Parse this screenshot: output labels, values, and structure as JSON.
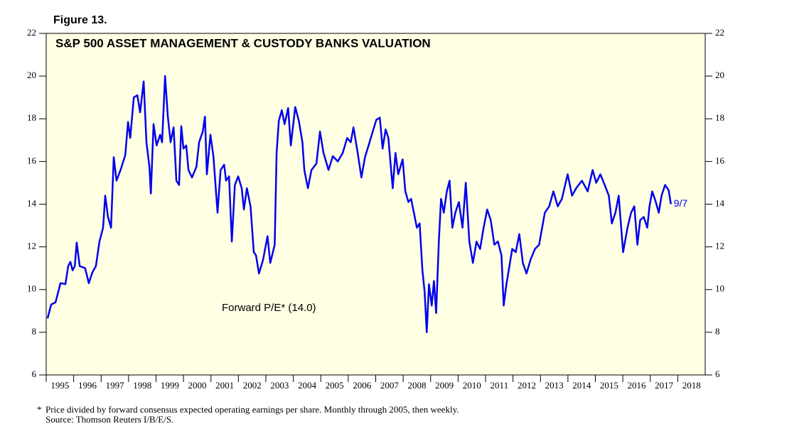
{
  "chart_data": {
    "type": "line",
    "figure_label": "Figure 13.",
    "title": "S&P 500 ASSET MANAGEMENT & CUSTODY BANKS VALUATION",
    "annotation": "Forward P/E* (14.0)",
    "end_label": "9/7",
    "footnote_marker": "*",
    "footnote": "Price divided by forward consensus expected operating earnings per share. Monthly through 2005, then weekly.",
    "source": "Source: Thomson Reuters I/B/E/S.",
    "xlim": [
      1995,
      2019
    ],
    "xticks": [
      1995,
      1996,
      1997,
      1998,
      1999,
      2000,
      2001,
      2002,
      2003,
      2004,
      2005,
      2006,
      2007,
      2008,
      2009,
      2010,
      2011,
      2012,
      2013,
      2014,
      2015,
      2016,
      2017,
      2018
    ],
    "ylim": [
      6,
      22
    ],
    "yticks": [
      6,
      8,
      10,
      12,
      14,
      16,
      18,
      20,
      22
    ],
    "x": [
      1995.05,
      1995.18,
      1995.34,
      1995.52,
      1995.7,
      1995.8,
      1995.88,
      1995.96,
      1996.04,
      1996.11,
      1996.22,
      1996.42,
      1996.55,
      1996.68,
      1996.81,
      1996.94,
      1997.07,
      1997.15,
      1997.25,
      1997.36,
      1997.46,
      1997.56,
      1997.72,
      1997.88,
      1997.98,
      1998.06,
      1998.19,
      1998.32,
      1998.42,
      1998.55,
      1998.65,
      1998.76,
      1998.81,
      1998.91,
      1999.02,
      1999.15,
      1999.22,
      1999.33,
      1999.43,
      1999.53,
      1999.64,
      1999.74,
      1999.84,
      1999.92,
      2000.0,
      2000.1,
      2000.18,
      2000.31,
      2000.47,
      2000.57,
      2000.7,
      2000.78,
      2000.85,
      2000.98,
      2001.09,
      2001.24,
      2001.35,
      2001.48,
      2001.55,
      2001.66,
      2001.76,
      2001.87,
      2001.99,
      2002.12,
      2002.2,
      2002.31,
      2002.44,
      2002.56,
      2002.64,
      2002.75,
      2002.9,
      2003.06,
      2003.16,
      2003.32,
      2003.39,
      2003.47,
      2003.58,
      2003.68,
      2003.81,
      2003.91,
      2004.07,
      2004.2,
      2004.33,
      2004.4,
      2004.53,
      2004.66,
      2004.84,
      2004.97,
      2005.1,
      2005.28,
      2005.44,
      2005.62,
      2005.8,
      2005.96,
      2006.09,
      2006.19,
      2006.32,
      2006.48,
      2006.61,
      2006.74,
      2006.89,
      2007.02,
      2007.15,
      2007.25,
      2007.36,
      2007.46,
      2007.54,
      2007.62,
      2007.72,
      2007.82,
      2007.98,
      2008.08,
      2008.19,
      2008.29,
      2008.39,
      2008.5,
      2008.6,
      2008.7,
      2008.78,
      2008.86,
      2008.94,
      2009.04,
      2009.12,
      2009.2,
      2009.3,
      2009.38,
      2009.48,
      2009.59,
      2009.69,
      2009.79,
      2009.9,
      2010.03,
      2010.16,
      2010.28,
      2010.41,
      2010.54,
      2010.67,
      2010.8,
      2010.93,
      2011.06,
      2011.19,
      2011.32,
      2011.45,
      2011.58,
      2011.66,
      2011.76,
      2011.87,
      2011.97,
      2012.1,
      2012.23,
      2012.36,
      2012.49,
      2012.64,
      2012.8,
      2012.95,
      2013.06,
      2013.16,
      2013.32,
      2013.47,
      2013.63,
      2013.78,
      2013.99,
      2014.15,
      2014.3,
      2014.51,
      2014.72,
      2014.9,
      2015.03,
      2015.18,
      2015.34,
      2015.49,
      2015.6,
      2015.73,
      2015.85,
      2016.01,
      2016.17,
      2016.3,
      2016.42,
      2016.53,
      2016.63,
      2016.76,
      2016.89,
      2016.97,
      2017.07,
      2017.2,
      2017.31,
      2017.41,
      2017.54,
      2017.67,
      2017.75
    ],
    "series": [
      {
        "name": "Forward P/E",
        "color": "#0000ee",
        "values": [
          8.65,
          9.3,
          9.4,
          10.3,
          10.25,
          11.1,
          11.3,
          10.9,
          11.1,
          12.2,
          11.1,
          11.0,
          10.3,
          10.8,
          11.1,
          12.25,
          12.9,
          14.4,
          13.4,
          12.9,
          16.2,
          15.1,
          15.65,
          16.3,
          17.85,
          17.1,
          19.0,
          19.1,
          18.3,
          19.75,
          16.9,
          15.75,
          14.5,
          17.75,
          16.75,
          17.25,
          16.9,
          20.0,
          18.1,
          16.9,
          17.6,
          15.1,
          14.9,
          17.65,
          16.6,
          16.75,
          15.6,
          15.25,
          15.75,
          16.9,
          17.4,
          18.1,
          15.4,
          17.25,
          16.25,
          13.6,
          15.6,
          15.85,
          15.1,
          15.3,
          12.25,
          14.9,
          15.3,
          14.75,
          13.75,
          14.75,
          13.9,
          11.75,
          11.6,
          10.75,
          11.4,
          12.5,
          11.25,
          12.1,
          16.4,
          17.9,
          18.4,
          17.75,
          18.5,
          16.75,
          18.55,
          17.9,
          16.9,
          15.6,
          14.75,
          15.6,
          15.9,
          17.4,
          16.4,
          15.6,
          16.25,
          16.0,
          16.4,
          17.1,
          16.9,
          17.6,
          16.6,
          15.25,
          16.2,
          16.75,
          17.4,
          17.95,
          18.05,
          16.6,
          17.5,
          17.1,
          15.9,
          14.75,
          16.4,
          15.4,
          16.1,
          14.6,
          14.1,
          14.25,
          13.6,
          12.9,
          13.1,
          10.9,
          9.9,
          8.0,
          10.25,
          9.25,
          10.4,
          8.9,
          12.25,
          14.25,
          13.6,
          14.6,
          15.1,
          12.9,
          13.6,
          14.1,
          12.9,
          15.0,
          12.25,
          11.25,
          12.25,
          11.9,
          12.9,
          13.75,
          13.25,
          12.1,
          12.25,
          11.6,
          9.25,
          10.25,
          11.1,
          11.9,
          11.75,
          12.6,
          11.25,
          10.75,
          11.4,
          11.9,
          12.1,
          12.9,
          13.6,
          13.9,
          14.6,
          13.9,
          14.25,
          15.4,
          14.4,
          14.75,
          15.1,
          14.6,
          15.6,
          15.0,
          15.4,
          14.9,
          14.4,
          13.1,
          13.6,
          14.4,
          11.75,
          12.9,
          13.6,
          13.9,
          12.1,
          13.25,
          13.4,
          12.9,
          13.9,
          14.6,
          14.1,
          13.6,
          14.4,
          14.9,
          14.65,
          14.0
        ]
      }
    ],
    "background": "#ffffe4"
  }
}
